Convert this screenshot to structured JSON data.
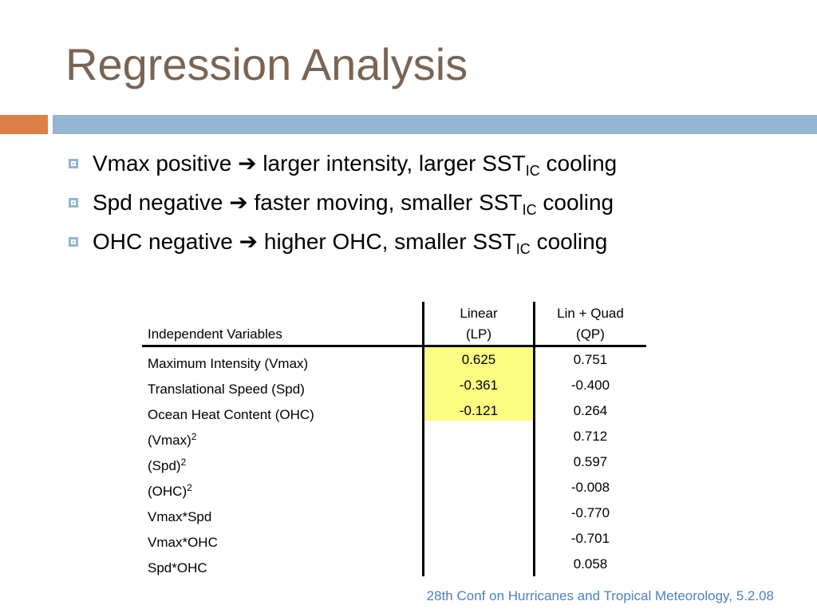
{
  "slide": {
    "title": "Regression Analysis",
    "bullets": [
      {
        "pre": "Vmax positive",
        "arrow": "➔",
        "post": "larger intensity, larger SST",
        "sub": "IC",
        "tail": "cooling"
      },
      {
        "pre": "Spd negative",
        "arrow": "➔",
        "post": "faster moving, smaller SST",
        "sub": "IC",
        "tail": "cooling"
      },
      {
        "pre": "OHC negative",
        "arrow": "➔",
        "post": "higher OHC, smaller SST",
        "sub": "IC",
        "tail": "cooling"
      }
    ],
    "footer": "28th Conf on Hurricanes and Tropical Meteorology, 5.2.08"
  },
  "table": {
    "header": {
      "variables": "Independent Variables",
      "lp_line1": "Linear",
      "lp_line2": "(LP)",
      "qp_line1": "Lin + Quad",
      "qp_line2": "(QP)"
    },
    "rows": [
      {
        "var": "Maximum Intensity (Vmax)",
        "sup": "",
        "lp": "0.625",
        "qp": "0.751"
      },
      {
        "var": "Translational Speed (Spd)",
        "sup": "",
        "lp": "-0.361",
        "qp": "-0.400"
      },
      {
        "var": "Ocean Heat Content (OHC)",
        "sup": "",
        "lp": "-0.121",
        "qp": "0.264"
      },
      {
        "var": "(Vmax)",
        "sup": "2",
        "lp": "",
        "qp": "0.712"
      },
      {
        "var": "(Spd)",
        "sup": "2",
        "lp": "",
        "qp": "0.597"
      },
      {
        "var": "(OHC)",
        "sup": "2",
        "lp": "",
        "qp": "-0.008"
      },
      {
        "var": "Vmax*Spd",
        "sup": "",
        "lp": "",
        "qp": "-0.770"
      },
      {
        "var": "Vmax*OHC",
        "sup": "",
        "lp": "",
        "qp": "-0.701"
      },
      {
        "var": "Spd*OHC",
        "sup": "",
        "lp": "",
        "qp": "0.058"
      }
    ],
    "highlight_color": "#fcfc82"
  },
  "colors": {
    "title": "#7a6454",
    "accent_orange": "#dd8047",
    "accent_blue": "#94b6d2",
    "footer": "#4f81bd"
  }
}
